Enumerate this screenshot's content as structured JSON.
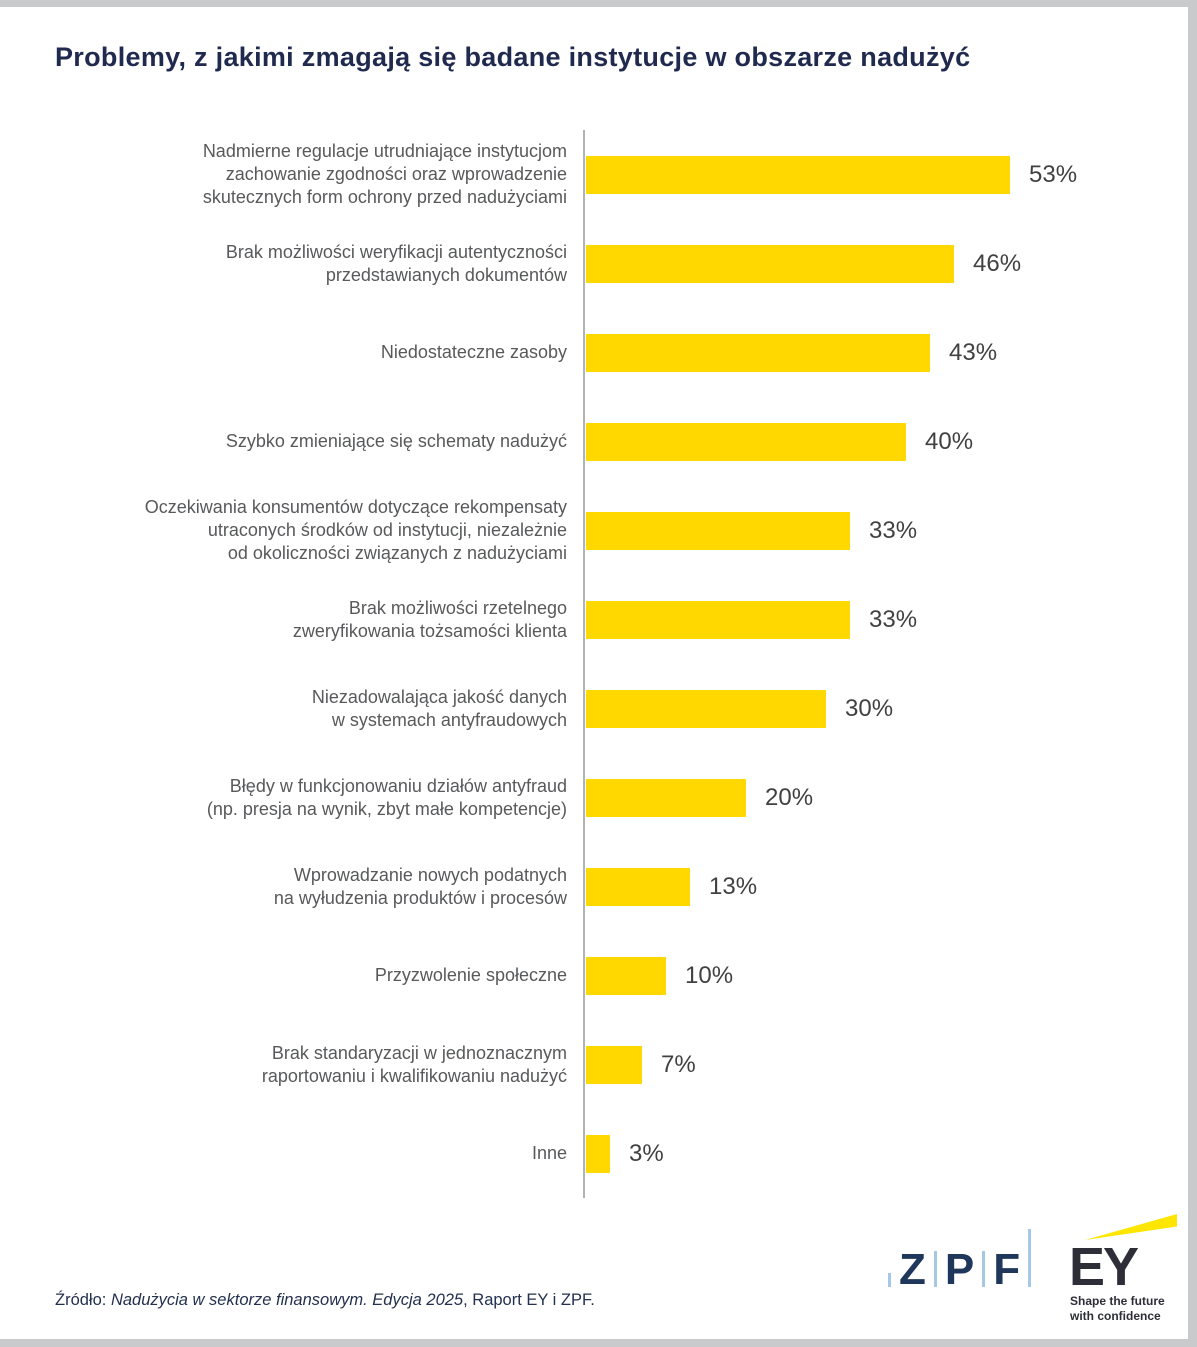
{
  "title": "Problemy, z jakimi zmagają się badane instytucje w obszarze nadużyć",
  "chart_data": {
    "type": "bar",
    "orientation": "horizontal",
    "title": "Problemy, z jakimi zmagają się badane instytucje w obszarze nadużyć",
    "xlabel": "",
    "ylabel": "",
    "xlim": [
      0,
      100
    ],
    "unit": "%",
    "grid": false,
    "legend": "none",
    "bar_color": "#FFD800",
    "categories": [
      "Nadmierne regulacje utrudniające instytucjom zachowanie zgodności oraz wprowadzenie skutecznych form ochrony przed nadużyciami",
      "Brak możliwości weryfikacji autentyczności przedstawianych dokumentów",
      "Niedostateczne zasoby",
      "Szybko zmieniające się schematy nadużyć",
      "Oczekiwania konsumentów dotyczące rekompensaty utraconych środków od instytucji, niezależnie od okoliczności związanych z nadużyciami",
      "Brak możliwości rzetelnego zweryfikowania tożsamości klienta",
      "Niezadowalająca jakość danych w systemach antyfraudowych",
      "Błędy w funkcjonowaniu działów antyfraud (np. presja na wynik, zbyt małe kompetencje)",
      "Wprowadzanie nowych podatnych na wyłudzenia produktów i procesów",
      "Przyzwolenie społeczne",
      "Brak standaryzacji w jednoznacznym raportowaniu i kwalifikowaniu nadużyć",
      "Inne"
    ],
    "category_lines": [
      [
        "Nadmierne regulacje utrudniające instytucjom",
        "zachowanie zgodności oraz wprowadzenie",
        "skutecznych form ochrony przed nadużyciami"
      ],
      [
        "Brak możliwości weryfikacji autentyczności",
        "przedstawianych dokumentów"
      ],
      [
        "Niedostateczne zasoby"
      ],
      [
        "Szybko zmieniające się schematy nadużyć"
      ],
      [
        "Oczekiwania konsumentów dotyczące rekompensaty",
        "utraconych środków od instytucji, niezależnie",
        "od okoliczności związanych z nadużyciami"
      ],
      [
        "Brak możliwości rzetelnego",
        "zweryfikowania tożsamości klienta"
      ],
      [
        "Niezadowalająca jakość danych",
        "w systemach antyfraudowych"
      ],
      [
        "Błędy w funkcjonowaniu działów antyfraud",
        "(np. presja na wynik, zbyt małe kompetencje)"
      ],
      [
        "Wprowadzanie nowych podatnych",
        "na wyłudzenia produktów i procesów"
      ],
      [
        "Przyzwolenie społeczne"
      ],
      [
        "Brak standaryzacji w jednoznacznym",
        "raportowaniu i kwalifikowaniu nadużyć"
      ],
      [
        "Inne"
      ]
    ],
    "values": [
      53,
      46,
      43,
      40,
      33,
      33,
      30,
      20,
      13,
      10,
      7,
      3
    ],
    "value_labels": [
      "53%",
      "46%",
      "43%",
      "40%",
      "33%",
      "33%",
      "30%",
      "20%",
      "13%",
      "10%",
      "7%",
      "3%"
    ]
  },
  "footer": {
    "prefix": "Źródło: ",
    "italic": "Nadużycia w sektorze finansowym. Edycja 2025",
    "suffix": ", Raport EY i ZPF."
  },
  "logos": {
    "zpf": {
      "letters": [
        "Z",
        "P",
        "F"
      ]
    },
    "ey": {
      "wordmark": "EY",
      "tagline": [
        "Shape the future",
        "with confidence"
      ]
    }
  },
  "colors": {
    "title": "#1F2A4E",
    "category_label": "#58595B",
    "value_label": "#414042",
    "bar": "#FFD800",
    "axis_line": "#B1B3B5",
    "frame": "#C8CACB",
    "zpf_navy": "#20375C",
    "zpf_blue": "#A5C8E6",
    "ey_dark": "#2E2E38",
    "ey_yellow": "#FFE600"
  }
}
